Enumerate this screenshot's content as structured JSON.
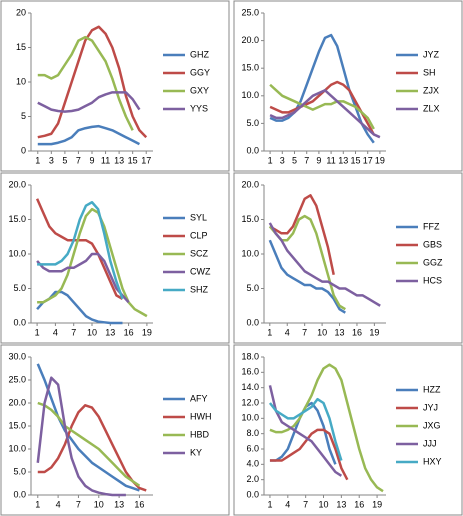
{
  "chart_data": [
    {
      "type": "line",
      "legend": "right",
      "x": [
        1,
        2,
        3,
        4,
        5,
        6,
        7,
        8,
        9,
        10,
        11,
        12,
        13,
        14,
        15,
        16,
        17
      ],
      "xlim": [
        0,
        18
      ],
      "xticks": [
        1,
        3,
        5,
        7,
        9,
        11,
        13,
        15,
        17
      ],
      "ylim": [
        0,
        20
      ],
      "yticks": [
        0,
        5,
        10,
        15,
        20
      ],
      "series": [
        {
          "name": "GHZ",
          "color": "#4a7ebb",
          "values": [
            1,
            1,
            1,
            1.2,
            1.5,
            2,
            3,
            3.3,
            3.5,
            3.6,
            3.3,
            3,
            2.5,
            2,
            1.5,
            1,
            null
          ]
        },
        {
          "name": "GGY",
          "color": "#be4b48",
          "values": [
            2,
            2.2,
            2.5,
            4,
            7,
            10,
            13,
            16,
            17.5,
            18,
            17,
            15,
            12,
            8,
            5,
            3,
            2
          ]
        },
        {
          "name": "GXY",
          "color": "#98b954",
          "values": [
            11,
            11,
            10.5,
            11,
            12.5,
            14,
            16,
            16.5,
            16,
            14.5,
            13,
            10.5,
            7.5,
            5,
            3,
            null,
            null
          ]
        },
        {
          "name": "YYS",
          "color": "#7d60a0",
          "values": [
            7,
            6.5,
            6,
            5.8,
            5.7,
            5.8,
            6,
            6.5,
            7,
            7.8,
            8.2,
            8.5,
            8.5,
            8.5,
            7.5,
            6,
            null
          ]
        }
      ]
    },
    {
      "type": "line",
      "legend": "right",
      "x": [
        1,
        2,
        3,
        4,
        5,
        6,
        7,
        8,
        9,
        10,
        11,
        12,
        13,
        14,
        15,
        16,
        17,
        18,
        19
      ],
      "xlim": [
        0,
        20
      ],
      "xticks": [
        1,
        3,
        5,
        7,
        9,
        11,
        13,
        15,
        17,
        19
      ],
      "ylim": [
        0,
        25
      ],
      "yticks": [
        {
          "value": 0,
          "label": "0.0"
        },
        {
          "value": 5,
          "label": "5.0"
        },
        {
          "value": 10,
          "label": "10.0"
        },
        {
          "value": 15,
          "label": "15.0"
        },
        {
          "value": 20,
          "label": "20.0"
        },
        {
          "value": 25,
          "label": "25.0"
        }
      ],
      "series": [
        {
          "name": "JYZ",
          "color": "#4a7ebb",
          "values": [
            6,
            5.5,
            5.5,
            6,
            7,
            9,
            12,
            15,
            18,
            20.5,
            21,
            19,
            15,
            11,
            8,
            5,
            3,
            1.5,
            null
          ]
        },
        {
          "name": "SH",
          "color": "#be4b48",
          "values": [
            8,
            7.5,
            7,
            7,
            7.5,
            8,
            8.5,
            9,
            10,
            11,
            12,
            12.5,
            12,
            11,
            9,
            7,
            5,
            3,
            null
          ]
        },
        {
          "name": "ZJX",
          "color": "#98b954",
          "values": [
            12,
            11,
            10,
            9.5,
            9,
            8.5,
            8,
            7.5,
            8,
            8.5,
            8.5,
            9,
            9,
            8.5,
            8,
            7,
            6,
            4,
            null
          ]
        },
        {
          "name": "ZLX",
          "color": "#7d60a0",
          "values": [
            6.5,
            6,
            6,
            6.5,
            7,
            8,
            9,
            10,
            10.5,
            11,
            10,
            9,
            8,
            7,
            6,
            5,
            4,
            3,
            2.5
          ]
        }
      ]
    },
    {
      "type": "line",
      "legend": "right",
      "x": [
        1,
        2,
        3,
        4,
        5,
        6,
        7,
        8,
        9,
        10,
        11,
        12,
        13,
        14,
        15,
        16,
        17,
        18,
        19
      ],
      "xlim": [
        0,
        20
      ],
      "xticks": [
        1,
        4,
        7,
        10,
        13,
        16,
        19
      ],
      "ylim": [
        0,
        20
      ],
      "yticks": [
        {
          "value": 0,
          "label": "0.0"
        },
        {
          "value": 5,
          "label": "5.0"
        },
        {
          "value": 10,
          "label": "10.0"
        },
        {
          "value": 15,
          "label": "15.0"
        },
        {
          "value": 20,
          "label": "20.0"
        }
      ],
      "series": [
        {
          "name": "SYL",
          "color": "#4a7ebb",
          "values": [
            2,
            3,
            3.5,
            4.5,
            4.5,
            4,
            3,
            2,
            1,
            0.5,
            0.2,
            0.1,
            0,
            0,
            0,
            null,
            null,
            null,
            null
          ]
        },
        {
          "name": "CLP",
          "color": "#be4b48",
          "values": [
            18,
            16,
            14,
            13,
            12.5,
            12,
            12,
            12,
            12,
            11.5,
            10,
            8,
            6,
            4,
            3.5,
            null,
            null,
            null,
            null
          ]
        },
        {
          "name": "SCZ",
          "color": "#98b954",
          "values": [
            3,
            3,
            3.5,
            4,
            5,
            7,
            10,
            13,
            15.5,
            16.5,
            16,
            14,
            11,
            8,
            5,
            3,
            2,
            1.5,
            1
          ]
        },
        {
          "name": "CWZ",
          "color": "#7d60a0",
          "values": [
            9,
            8,
            7.5,
            7.5,
            7.5,
            8,
            8,
            8.5,
            9,
            10,
            10,
            9,
            7,
            5,
            4,
            3,
            null,
            null,
            null
          ]
        },
        {
          "name": "SHZ",
          "color": "#46aac5",
          "values": [
            8.5,
            8.5,
            8.5,
            8.5,
            9,
            10,
            12,
            15,
            17,
            17.5,
            16.5,
            13,
            9,
            6,
            3.5,
            null,
            null,
            null,
            null
          ]
        }
      ]
    },
    {
      "type": "line",
      "legend": "right",
      "x": [
        1,
        2,
        3,
        4,
        5,
        6,
        7,
        8,
        9,
        10,
        11,
        12,
        13,
        14,
        15,
        16,
        17,
        18,
        19,
        20
      ],
      "xlim": [
        0,
        21
      ],
      "xticks": [
        1,
        4,
        7,
        10,
        13,
        16,
        19
      ],
      "ylim": [
        0,
        20
      ],
      "yticks": [
        {
          "value": 0,
          "label": "0.0"
        },
        {
          "value": 5,
          "label": "5.0"
        },
        {
          "value": 10,
          "label": "10.0"
        },
        {
          "value": 15,
          "label": "15.0"
        },
        {
          "value": 20,
          "label": "20.0"
        }
      ],
      "series": [
        {
          "name": "FFZ",
          "color": "#4a7ebb",
          "values": [
            12,
            10,
            8,
            7,
            6.5,
            6,
            5.5,
            5.5,
            5,
            5,
            4.5,
            3.5,
            2,
            1.5,
            null,
            null,
            null,
            null,
            null,
            null
          ]
        },
        {
          "name": "GBS",
          "color": "#be4b48",
          "values": [
            14,
            13.5,
            13,
            13,
            14,
            16,
            18,
            18.5,
            17,
            14,
            11,
            7,
            null,
            null,
            null,
            null,
            null,
            null,
            null,
            null
          ]
        },
        {
          "name": "GGZ",
          "color": "#98b954",
          "values": [
            14,
            13,
            12,
            12,
            13,
            15,
            15.5,
            15,
            13,
            10,
            7,
            4,
            2.5,
            2,
            null,
            null,
            null,
            null,
            null,
            null
          ]
        },
        {
          "name": "HCS",
          "color": "#7d60a0",
          "values": [
            14.5,
            13,
            12,
            10.5,
            9.5,
            8.5,
            7.5,
            7,
            6.5,
            6,
            6,
            5.5,
            5,
            5,
            4.5,
            4,
            4,
            3.5,
            3,
            2.5
          ]
        }
      ]
    },
    {
      "type": "line",
      "legend": "right",
      "x": [
        1,
        2,
        3,
        4,
        5,
        6,
        7,
        8,
        9,
        10,
        11,
        12,
        13,
        14,
        15,
        16,
        17
      ],
      "xlim": [
        0,
        18
      ],
      "xticks": [
        1,
        4,
        7,
        10,
        13,
        16
      ],
      "ylim": [
        0,
        30
      ],
      "yticks": [
        {
          "value": 0,
          "label": "0.0"
        },
        {
          "value": 5,
          "label": "5.0"
        },
        {
          "value": 10,
          "label": "10.0"
        },
        {
          "value": 15,
          "label": "15.0"
        },
        {
          "value": 20,
          "label": "20.0"
        },
        {
          "value": 25,
          "label": "25.0"
        },
        {
          "value": 30,
          "label": "30.0"
        }
      ],
      "series": [
        {
          "name": "AFY",
          "color": "#4a7ebb",
          "values": [
            28.5,
            25,
            21,
            17,
            14,
            12,
            10,
            8.5,
            7,
            6,
            5,
            4,
            3,
            2,
            1.5,
            1,
            null
          ]
        },
        {
          "name": "HWH",
          "color": "#be4b48",
          "values": [
            5,
            5,
            6,
            8,
            11,
            15,
            18,
            19.5,
            19,
            17,
            14,
            11,
            8,
            5,
            3,
            1.5,
            1
          ]
        },
        {
          "name": "HBD",
          "color": "#98b954",
          "values": [
            20,
            19.5,
            18.5,
            17,
            15,
            14,
            13,
            12,
            11,
            10,
            8.5,
            7,
            5.5,
            4,
            3,
            2,
            null
          ]
        },
        {
          "name": "KY",
          "color": "#7d60a0",
          "values": [
            7,
            20,
            25.5,
            24,
            15,
            8,
            4,
            2,
            1,
            0.5,
            0.2,
            0,
            0,
            0,
            null,
            null,
            null
          ]
        }
      ]
    },
    {
      "type": "line",
      "legend": "right",
      "x": [
        1,
        2,
        3,
        4,
        5,
        6,
        7,
        8,
        9,
        10,
        11,
        12,
        13,
        14,
        15,
        16,
        17,
        18,
        19,
        20
      ],
      "xlim": [
        0,
        20.5
      ],
      "xticks": [
        1,
        4,
        7,
        10,
        13,
        16,
        19
      ],
      "ylim": [
        0,
        18
      ],
      "yticks": [
        {
          "value": 0,
          "label": "0.0"
        },
        {
          "value": 2,
          "label": "2.0"
        },
        {
          "value": 4,
          "label": "4.0"
        },
        {
          "value": 6,
          "label": "6.0"
        },
        {
          "value": 8,
          "label": "8.0"
        },
        {
          "value": 10,
          "label": "10.0"
        },
        {
          "value": 12,
          "label": "12.0"
        },
        {
          "value": 14,
          "label": "14.0"
        },
        {
          "value": 16,
          "label": "16.0"
        },
        {
          "value": 18,
          "label": "18.0"
        }
      ],
      "series": [
        {
          "name": "HZZ",
          "color": "#4a7ebb",
          "values": [
            4.5,
            4.5,
            5,
            6,
            8,
            10,
            11.5,
            12,
            11,
            9,
            6,
            4,
            null,
            null,
            null,
            null,
            null,
            null,
            null,
            null
          ]
        },
        {
          "name": "JYJ",
          "color": "#be4b48",
          "values": [
            4.5,
            4.5,
            4.5,
            5,
            5.5,
            6,
            7,
            8,
            8.5,
            8.5,
            8,
            6,
            3.5,
            2,
            null,
            null,
            null,
            null,
            null,
            null
          ]
        },
        {
          "name": "JXG",
          "color": "#98b954",
          "values": [
            8.5,
            8.2,
            8.2,
            8.5,
            9,
            10,
            11.5,
            13,
            15,
            16.5,
            17,
            16.5,
            15,
            12,
            9,
            6,
            3.5,
            2,
            1,
            0.5
          ]
        },
        {
          "name": "JJJ",
          "color": "#7d60a0",
          "values": [
            14.3,
            11,
            9.5,
            9,
            8.5,
            8,
            7.5,
            7,
            6,
            5,
            4,
            3,
            2.5,
            null,
            null,
            null,
            null,
            null,
            null,
            null
          ]
        },
        {
          "name": "HXY",
          "color": "#46aac5",
          "values": [
            12,
            11,
            10.5,
            10,
            10,
            10.5,
            11,
            11.5,
            12.5,
            12,
            10,
            7,
            4.5,
            null,
            null,
            null,
            null,
            null,
            null,
            null
          ]
        }
      ]
    }
  ]
}
